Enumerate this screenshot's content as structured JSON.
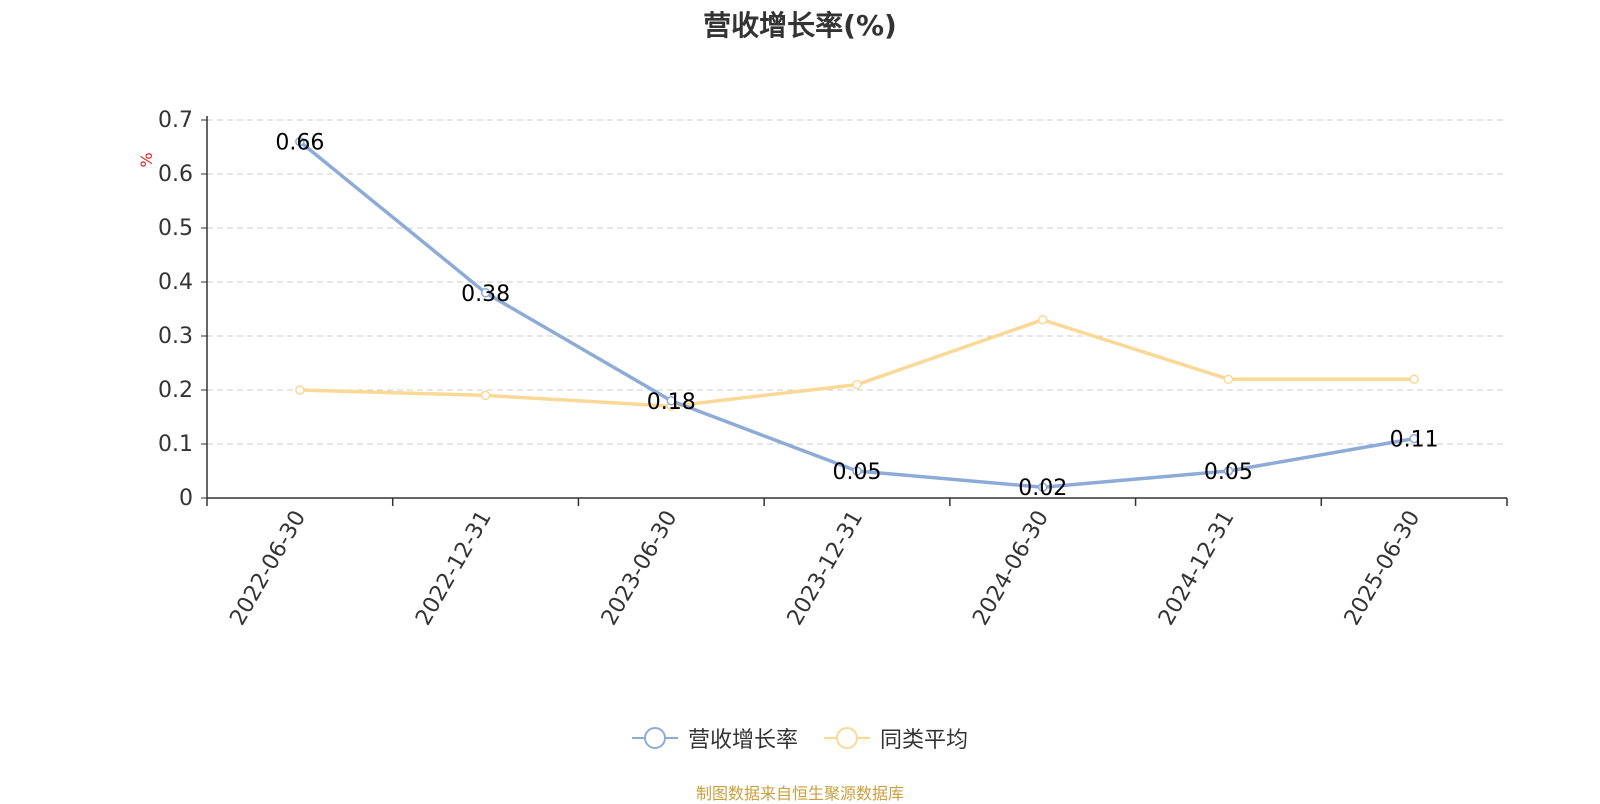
{
  "chart_data": {
    "type": "line",
    "title": "营收增长率(%)",
    "ylabel": "%",
    "categories": [
      "2022-06-30",
      "2022-12-31",
      "2023-06-30",
      "2023-12-31",
      "2024-06-30",
      "2024-12-31",
      "2025-06-30"
    ],
    "ylim": [
      0,
      0.7
    ],
    "yticks": [
      "0",
      "0.1",
      "0.2",
      "0.3",
      "0.4",
      "0.5",
      "0.6",
      "0.7"
    ],
    "grid": true,
    "legend_position": "bottom",
    "series": [
      {
        "name": "营收增长率",
        "color": "#8eabd8",
        "values": [
          0.66,
          0.38,
          0.18,
          0.05,
          0.02,
          0.05,
          0.11
        ],
        "labels": [
          "0.66",
          "0.38",
          "0.18",
          "0.05",
          "0.02",
          "0.05",
          "0.11"
        ]
      },
      {
        "name": "同类平均",
        "color": "#fad896",
        "values": [
          0.2,
          0.19,
          0.17,
          0.21,
          0.33,
          0.22,
          0.22
        ]
      }
    ]
  },
  "source": "制图数据来自恒生聚源数据库"
}
